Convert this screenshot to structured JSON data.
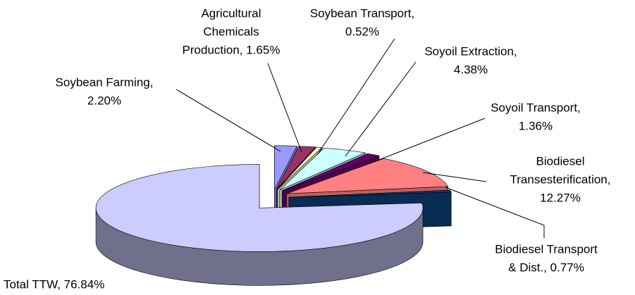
{
  "chart_data": {
    "type": "pie3d",
    "values": [
      2.2,
      1.65,
      0.52,
      4.38,
      1.36,
      12.27,
      0.77,
      76.84
    ],
    "value_labels": [
      [
        "Soybean Farming,",
        "2.20%"
      ],
      [
        "Agricultural",
        "Chemicals",
        "Production, 1.65%"
      ],
      [
        "Soybean Transport,",
        "0.52%"
      ],
      [
        "Soyoil Extraction,",
        "4.38%"
      ],
      [
        "Soyoil Transport,",
        "1.36%"
      ],
      [
        "Biodiesel",
        "Transesterification,",
        "12.27%"
      ],
      [
        "Biodiesel Transport",
        "& Dist., 0.77%"
      ],
      [
        "Total TTW, 76.84%"
      ]
    ],
    "colors": [
      "#9999ff",
      "#993366",
      "#ffffcc",
      "#ccffff",
      "#660066",
      "#ff8080",
      "#0b3a70",
      "#ccccff"
    ]
  }
}
